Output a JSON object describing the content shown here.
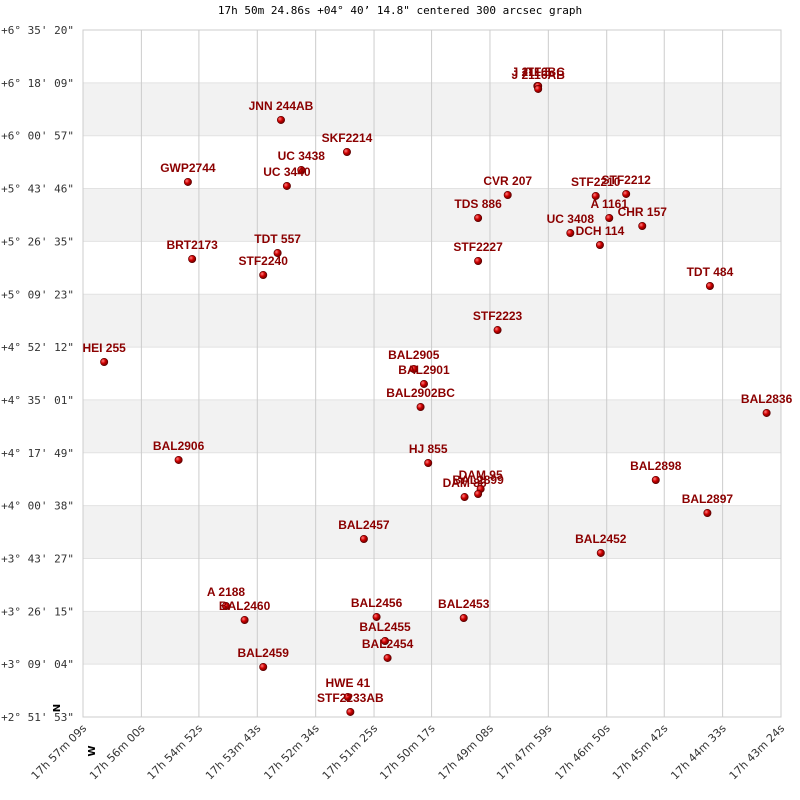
{
  "chart_data": {
    "type": "scatter",
    "title": "17h 50m 24.86s +04° 40’ 14.8\" centered 300 arcsec graph",
    "point_labels": [
      "ITF   5",
      "J  2116BC",
      "J  2116AB",
      "JNN 244AB",
      "SKF2214",
      "UC 3438",
      "UC 3440",
      "GWP2744",
      "CVR 207",
      "STF2210",
      "STF2212",
      "A  1161",
      "CHR 157",
      "TDS 886",
      "UC 3408",
      "DCH 114",
      "TDT 557",
      "BRT2173",
      "STF2240",
      "STF2227",
      "TDT 484",
      "STF2223",
      "HEI 255",
      "BAL2905",
      "BAL2901",
      "BAL2902BC",
      "BAL2836",
      "BAL2906",
      "HJ  855",
      "DAM  95",
      "BAL2899",
      "DAM  86",
      "BAL2898",
      "BAL2897",
      "BAL2457",
      "BAL2452",
      "A  2188",
      "BAL2460",
      "BAL2456",
      "BAL2453",
      "BAL2455",
      "BAL2454",
      "BAL2459",
      "HWE  41",
      "STF2233AB"
    ],
    "x": [
      64092,
      64091,
      64091,
      64395,
      64317,
      64371,
      64388,
      64505,
      64127,
      64023,
      63987,
      64007,
      63968,
      64162,
      64053,
      64018,
      64399,
      64500,
      64416,
      64162,
      63888,
      64139,
      64604,
      64238,
      64226,
      64230,
      63821,
      64516,
      64221,
      64159,
      64162,
      64178,
      63952,
      63891,
      64297,
      64017,
      64460,
      64438,
      64282,
      64179,
      64272,
      64269,
      64416,
      64316,
      64313
    ],
    "y": [
      22627,
      22627,
      22569,
      21964,
      21339,
      20988,
      20676,
      20754,
      20500,
      20481,
      20520,
      20051,
      19895,
      20051,
      19758,
      19524,
      19368,
      19251,
      18939,
      19212,
      18724,
      17865,
      17241,
      17104,
      16812,
      16363,
      16246,
      15329,
      15270,
      14763,
      14665,
      14606,
      14938,
      14294,
      13787,
      13514,
      12479,
      12206,
      12265,
      12245,
      11796,
      11465,
      11289,
      10703,
      10411
    ],
    "color": "#cc0000",
    "label_color": "#8b0000",
    "xlim": [
      64629,
      63804
    ],
    "ylim": [
      10313,
      23720
    ],
    "xticks": [
      {
        "value": 64629,
        "label": "17h 57m 09s"
      },
      {
        "value": 64560,
        "label": "17h 56m 00s"
      },
      {
        "value": 64492,
        "label": "17h 54m 52s"
      },
      {
        "value": 64423,
        "label": "17h 53m 43s"
      },
      {
        "value": 64354,
        "label": "17h 52m 34s"
      },
      {
        "value": 64285,
        "label": "17h 51m 25s"
      },
      {
        "value": 64217,
        "label": "17h 50m 17s"
      },
      {
        "value": 64148,
        "label": "17h 49m 08s"
      },
      {
        "value": 64079,
        "label": "17h 47m 59s"
      },
      {
        "value": 64010,
        "label": "17h 46m 50s"
      },
      {
        "value": 63942,
        "label": "17h 45m 42s"
      },
      {
        "value": 63873,
        "label": "17h 44m 33s"
      },
      {
        "value": 63804,
        "label": "17h 43m 24s"
      }
    ],
    "yticks": [
      {
        "value": 23720,
        "label": "+6° 35' 20\""
      },
      {
        "value": 22689,
        "label": "+6° 18' 09\""
      },
      {
        "value": 21657,
        "label": "+6° 00' 57\""
      },
      {
        "value": 20626,
        "label": "+5° 43' 46\""
      },
      {
        "value": 19595,
        "label": "+5° 26' 35\""
      },
      {
        "value": 18563,
        "label": "+5° 09' 23\""
      },
      {
        "value": 17532,
        "label": "+4° 52' 12\""
      },
      {
        "value": 16501,
        "label": "+4° 35' 01\""
      },
      {
        "value": 15469,
        "label": "+4° 17' 49\""
      },
      {
        "value": 14438,
        "label": "+4° 00' 38\""
      },
      {
        "value": 13407,
        "label": "+3° 43' 27\""
      },
      {
        "value": 12375,
        "label": "+3° 26' 15\""
      },
      {
        "value": 11344,
        "label": "+3° 09' 04\""
      },
      {
        "value": 10313,
        "label": "+2° 51' 53\""
      }
    ],
    "grid": true,
    "alternating_bands": true,
    "compass": {
      "north": "N",
      "west": "W"
    }
  }
}
